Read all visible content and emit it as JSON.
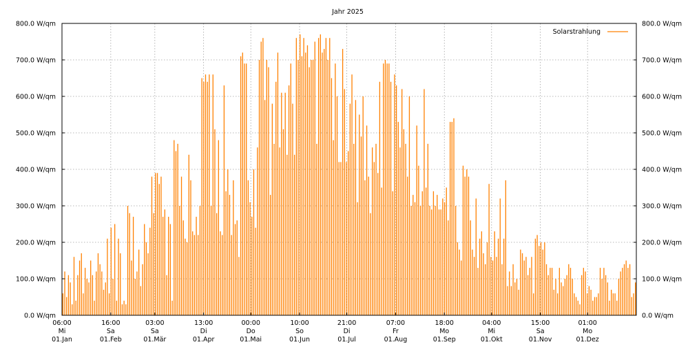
{
  "chart_data": {
    "type": "bar",
    "title": "Jahr 2025",
    "series": [
      {
        "name": "Solarstrahlung",
        "color": "#ff8000"
      }
    ],
    "y_unit": "W/qm",
    "ylim": [
      0,
      800
    ],
    "y_ticks": [
      {
        "value": 0,
        "label": "0.0 W/qm"
      },
      {
        "value": 100,
        "label": "100.0 W/qm"
      },
      {
        "value": 200,
        "label": "200.0 W/qm"
      },
      {
        "value": 300,
        "label": "300.0 W/qm"
      },
      {
        "value": 400,
        "label": "400.0 W/qm"
      },
      {
        "value": 500,
        "label": "500.0 W/qm"
      },
      {
        "value": 600,
        "label": "600.0 W/qm"
      },
      {
        "value": 700,
        "label": "700.0 W/qm"
      },
      {
        "value": 800,
        "label": "800.0 W/qm"
      }
    ],
    "xlim_days": [
      0,
      365
    ],
    "x_ticks": [
      {
        "day": 0,
        "time": "06:00",
        "weekday": "Mi",
        "date": "01.Jan"
      },
      {
        "day": 31,
        "time": "16:00",
        "weekday": "Sa",
        "date": "01.Feb"
      },
      {
        "day": 59,
        "time": "03:00",
        "weekday": "Sa",
        "date": "01.Mär"
      },
      {
        "day": 90,
        "time": "13:00",
        "weekday": "Di",
        "date": "01.Apr"
      },
      {
        "day": 120,
        "time": "00:00",
        "weekday": "Do",
        "date": "01.Mai"
      },
      {
        "day": 151,
        "time": "10:00",
        "weekday": "So",
        "date": "01.Jun"
      },
      {
        "day": 181,
        "time": "21:00",
        "weekday": "Di",
        "date": "01.Jul"
      },
      {
        "day": 212,
        "time": "07:00",
        "weekday": "Fr",
        "date": "01.Aug"
      },
      {
        "day": 243,
        "time": "18:00",
        "weekday": "Mo",
        "date": "01.Sep"
      },
      {
        "day": 273,
        "time": "04:00",
        "weekday": "Mi",
        "date": "01.Okt"
      },
      {
        "day": 304,
        "time": "15:00",
        "weekday": "Sa",
        "date": "01.Nov"
      },
      {
        "day": 334,
        "time": "01:00",
        "weekday": "Mo",
        "date": "01.Dez"
      }
    ],
    "daily_peak": [
      60,
      120,
      50,
      110,
      90,
      30,
      160,
      40,
      110,
      150,
      170,
      60,
      130,
      100,
      90,
      150,
      110,
      40,
      120,
      170,
      140,
      120,
      70,
      90,
      210,
      60,
      240,
      100,
      250,
      40,
      210,
      170,
      30,
      40,
      30,
      300,
      280,
      150,
      270,
      100,
      120,
      180,
      80,
      140,
      250,
      200,
      170,
      240,
      380,
      280,
      390,
      390,
      360,
      380,
      270,
      290,
      110,
      270,
      250,
      40,
      480,
      450,
      470,
      300,
      380,
      260,
      210,
      200,
      440,
      370,
      230,
      220,
      270,
      220,
      300,
      650,
      640,
      660,
      640,
      660,
      300,
      660,
      510,
      280,
      480,
      230,
      220,
      630,
      340,
      400,
      330,
      220,
      370,
      250,
      260,
      160,
      710,
      720,
      690,
      690,
      370,
      310,
      270,
      400,
      240,
      460,
      700,
      750,
      760,
      590,
      700,
      680,
      330,
      580,
      470,
      640,
      720,
      460,
      610,
      510,
      610,
      440,
      630,
      690,
      580,
      440,
      760,
      700,
      770,
      710,
      760,
      720,
      740,
      680,
      700,
      700,
      750,
      470,
      760,
      770,
      720,
      730,
      760,
      700,
      760,
      650,
      480,
      690,
      600,
      420,
      420,
      730,
      620,
      420,
      450,
      580,
      660,
      470,
      590,
      310,
      550,
      490,
      600,
      370,
      520,
      380,
      280,
      460,
      420,
      470,
      390,
      640,
      350,
      690,
      700,
      690,
      690,
      640,
      340,
      660,
      630,
      530,
      460,
      620,
      510,
      470,
      380,
      600,
      300,
      330,
      310,
      520,
      410,
      300,
      340,
      620,
      350,
      470,
      300,
      290,
      340,
      300,
      330,
      290,
      290,
      320,
      310,
      350,
      260,
      530,
      530,
      540,
      300,
      200,
      180,
      150,
      410,
      380,
      400,
      380,
      260,
      180,
      160,
      320,
      130,
      210,
      230,
      170,
      140,
      200,
      360,
      160,
      150,
      230,
      160,
      210,
      320,
      140,
      210,
      370,
      80,
      120,
      80,
      140,
      90,
      100,
      70,
      180,
      170,
      150,
      160,
      110,
      130,
      160,
      60,
      210,
      220,
      190,
      200,
      180,
      200,
      140,
      110,
      130,
      130,
      70,
      100,
      60,
      130,
      90,
      80,
      100,
      110,
      140,
      130,
      100,
      60,
      50,
      40,
      30,
      110,
      130,
      120,
      60,
      80,
      70,
      40,
      50,
      50,
      60,
      130,
      100,
      130,
      110,
      90,
      40,
      70,
      60,
      60,
      40,
      100,
      120,
      130,
      140,
      150,
      130,
      140,
      50,
      60,
      90
    ]
  }
}
